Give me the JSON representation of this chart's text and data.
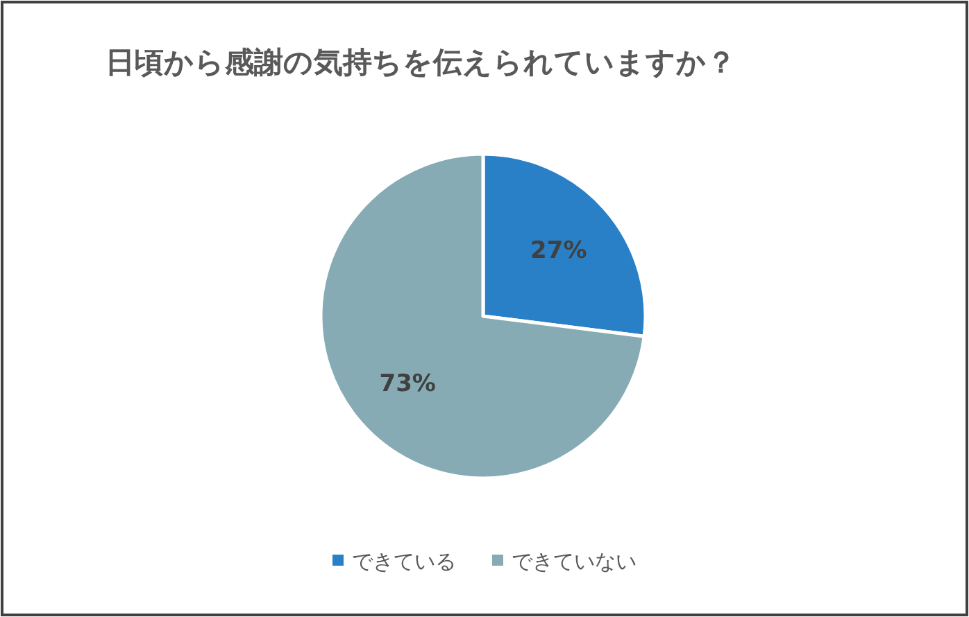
{
  "chart_data": {
    "type": "pie",
    "title": "日頃から感謝の気持ちを伝えられていますか？",
    "categories": [
      "できている",
      "できていない"
    ],
    "values": [
      27,
      73
    ],
    "value_labels": [
      "27%",
      "73%"
    ],
    "colors": [
      "#2a80c6",
      "#86abb5"
    ],
    "legend": "bottom"
  }
}
